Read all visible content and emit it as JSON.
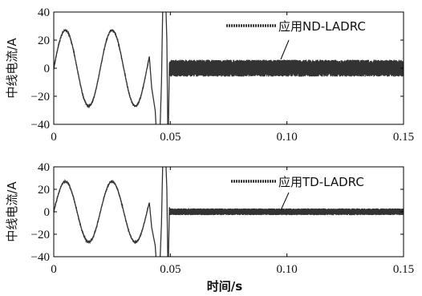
{
  "chart_data": [
    {
      "type": "line",
      "ylabel": "中线电流/A",
      "xlabel": "",
      "xlim": [
        0,
        0.15
      ],
      "ylim": [
        -40,
        40
      ],
      "x_ticks": [
        "0",
        "0.05",
        "0.10",
        "0.15"
      ],
      "y_ticks": [
        "40",
        "20",
        "0",
        "−20",
        "−40"
      ],
      "series": [
        {
          "name": "应用ND-LADRC",
          "color": "#333333",
          "sine_amplitude": 27,
          "sine_frequency_hz": 50,
          "transient_start": 0.041,
          "spike_time": 0.047,
          "switch_time": 0.049,
          "steady_ripple_amplitude": 6
        }
      ],
      "legend": {
        "position": "top-right",
        "label": "应用ND-LADRC"
      }
    },
    {
      "type": "line",
      "ylabel": "中线电流/A",
      "xlabel": "时间/s",
      "xlim": [
        0,
        0.15
      ],
      "ylim": [
        -40,
        40
      ],
      "x_ticks": [
        "0",
        "0.05",
        "0.10",
        "0.15"
      ],
      "y_ticks": [
        "40",
        "20",
        "0",
        "−20",
        "−40"
      ],
      "series": [
        {
          "name": "应用TD-LADRC",
          "color": "#333333",
          "sine_amplitude": 27,
          "sine_frequency_hz": 50,
          "transient_start": 0.041,
          "spike_time": 0.047,
          "switch_time": 0.049,
          "steady_ripple_amplitude": 3
        }
      ],
      "legend": {
        "position": "top-right",
        "label": "应用TD-LADRC"
      }
    }
  ]
}
